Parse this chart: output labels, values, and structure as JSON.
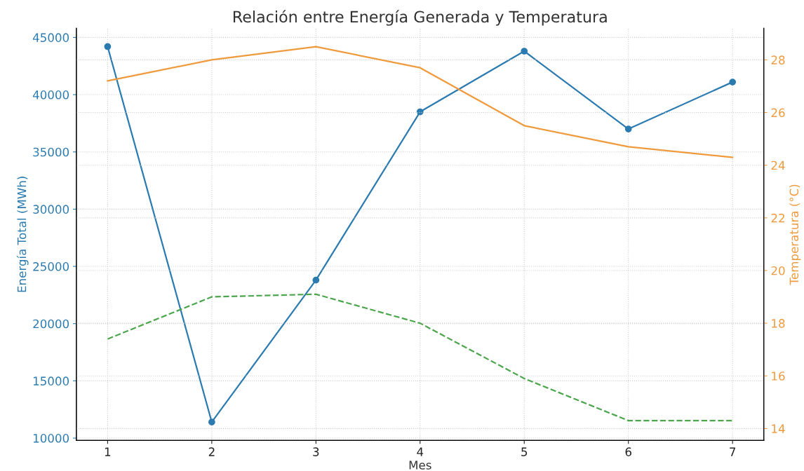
{
  "chart_data": {
    "type": "line",
    "title": "Relación entre Energía Generada y Temperatura",
    "xlabel": "Mes",
    "ylabel": "Energía Total (MWh)",
    "y2label": "Temperatura (°C)",
    "x": [
      1,
      2,
      3,
      4,
      5,
      6,
      7
    ],
    "series": [
      {
        "color": "#2b7bb0",
        "values": [
          44200,
          11400,
          23800,
          38500,
          43800,
          37000,
          41100
        ],
        "marker": "circle",
        "line_style": "solid"
      },
      {
        "color": "#ef9a3c",
        "values": [
          27.2,
          28.0,
          28.5,
          27.7,
          25.5,
          24.7,
          24.3
        ],
        "axis": "y2",
        "marker": "none",
        "line_style": "solid"
      },
      {
        "color": "#4ca64c",
        "values": [
          17.4,
          19.0,
          19.1,
          18.0,
          15.9,
          14.3,
          14.3
        ],
        "axis": "y2",
        "marker": "none",
        "line_style": "dashed"
      }
    ],
    "xlim": [
      0.7,
      7.3
    ],
    "xticks": [
      1,
      2,
      3,
      4,
      5,
      6,
      7
    ],
    "ylim": [
      9800,
      45800
    ],
    "yticks": [
      10000,
      15000,
      20000,
      25000,
      30000,
      35000,
      40000,
      45000
    ],
    "y2lim": [
      13.55,
      29.2
    ],
    "y2ticks": [
      14,
      16,
      18,
      20,
      22,
      24,
      26,
      28
    ],
    "grid": true
  }
}
